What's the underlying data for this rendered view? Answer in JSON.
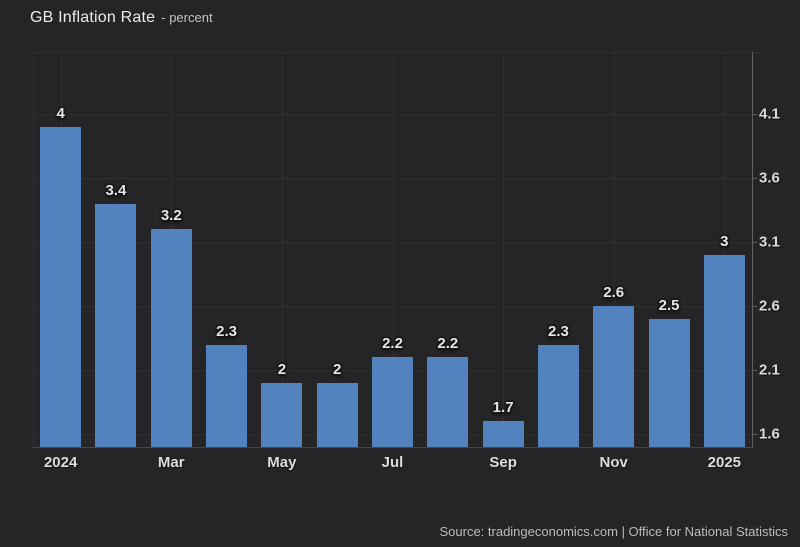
{
  "header": {
    "title": "GB Inflation Rate",
    "subtitle": "- percent"
  },
  "footer": {
    "source": "Source: tradingeconomics.com | Office for National Statistics"
  },
  "colors": {
    "background": "#252527",
    "bar": "#5383bf",
    "grid": "#3b3b3d",
    "axis": "#5f6164",
    "label": "#e6e6e6",
    "tick_label": "#dcdcdc"
  },
  "chart_data": {
    "type": "bar",
    "title": "GB Inflation Rate",
    "ylabel": "percent",
    "values": [
      4,
      3.4,
      3.2,
      2.3,
      2,
      2,
      2.2,
      2.2,
      1.7,
      2.3,
      2.6,
      2.5,
      3
    ],
    "bar_labels": [
      "4",
      "3.4",
      "3.2",
      "2.3",
      "2",
      "2",
      "2.2",
      "2.2",
      "1.7",
      "2.3",
      "2.6",
      "2.5",
      "3"
    ],
    "x_tick_labels": [
      "2024",
      "Mar",
      "May",
      "Jul",
      "Sep",
      "Nov",
      "2025"
    ],
    "x_tick_indices": [
      0,
      2,
      4,
      6,
      8,
      10,
      12
    ],
    "y_ticks": [
      1.6,
      2.1,
      2.6,
      3.1,
      3.6,
      4.1
    ],
    "y_tick_labels": [
      "1.6",
      "2.1",
      "2.6",
      "3.1",
      "3.6",
      "4.1"
    ],
    "ylim": [
      1.5,
      4.586
    ],
    "grid": "dotted",
    "legend": "none",
    "y_axis_side": "right"
  }
}
